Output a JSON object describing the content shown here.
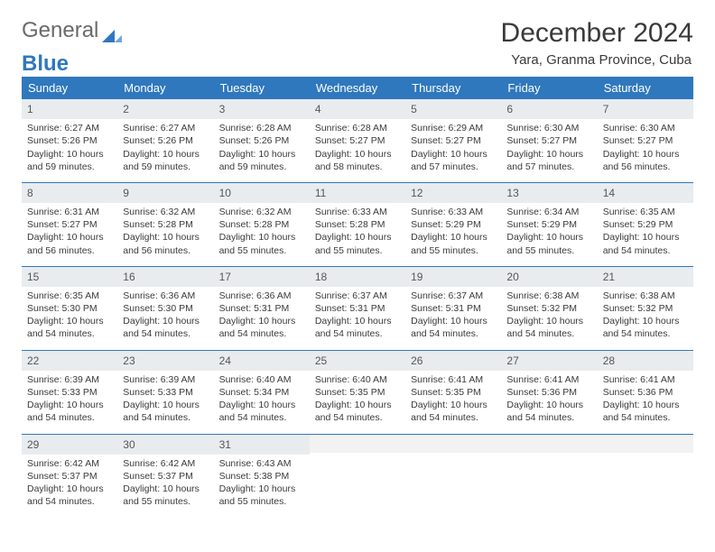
{
  "logo": {
    "text1": "General",
    "text2": "Blue"
  },
  "title": "December 2024",
  "subtitle": "Yara, Granma Province, Cuba",
  "colors": {
    "header_bg": "#2f78bd",
    "header_fg": "#ffffff",
    "daynum_bg": "#e9ecef",
    "border": "#2f78bd"
  },
  "weekday_labels": [
    "Sunday",
    "Monday",
    "Tuesday",
    "Wednesday",
    "Thursday",
    "Friday",
    "Saturday"
  ],
  "days": [
    {
      "n": "1",
      "sr": "6:27 AM",
      "ss": "5:26 PM",
      "dl": "10 hours and 59 minutes."
    },
    {
      "n": "2",
      "sr": "6:27 AM",
      "ss": "5:26 PM",
      "dl": "10 hours and 59 minutes."
    },
    {
      "n": "3",
      "sr": "6:28 AM",
      "ss": "5:26 PM",
      "dl": "10 hours and 59 minutes."
    },
    {
      "n": "4",
      "sr": "6:28 AM",
      "ss": "5:27 PM",
      "dl": "10 hours and 58 minutes."
    },
    {
      "n": "5",
      "sr": "6:29 AM",
      "ss": "5:27 PM",
      "dl": "10 hours and 57 minutes."
    },
    {
      "n": "6",
      "sr": "6:30 AM",
      "ss": "5:27 PM",
      "dl": "10 hours and 57 minutes."
    },
    {
      "n": "7",
      "sr": "6:30 AM",
      "ss": "5:27 PM",
      "dl": "10 hours and 56 minutes."
    },
    {
      "n": "8",
      "sr": "6:31 AM",
      "ss": "5:27 PM",
      "dl": "10 hours and 56 minutes."
    },
    {
      "n": "9",
      "sr": "6:32 AM",
      "ss": "5:28 PM",
      "dl": "10 hours and 56 minutes."
    },
    {
      "n": "10",
      "sr": "6:32 AM",
      "ss": "5:28 PM",
      "dl": "10 hours and 55 minutes."
    },
    {
      "n": "11",
      "sr": "6:33 AM",
      "ss": "5:28 PM",
      "dl": "10 hours and 55 minutes."
    },
    {
      "n": "12",
      "sr": "6:33 AM",
      "ss": "5:29 PM",
      "dl": "10 hours and 55 minutes."
    },
    {
      "n": "13",
      "sr": "6:34 AM",
      "ss": "5:29 PM",
      "dl": "10 hours and 55 minutes."
    },
    {
      "n": "14",
      "sr": "6:35 AM",
      "ss": "5:29 PM",
      "dl": "10 hours and 54 minutes."
    },
    {
      "n": "15",
      "sr": "6:35 AM",
      "ss": "5:30 PM",
      "dl": "10 hours and 54 minutes."
    },
    {
      "n": "16",
      "sr": "6:36 AM",
      "ss": "5:30 PM",
      "dl": "10 hours and 54 minutes."
    },
    {
      "n": "17",
      "sr": "6:36 AM",
      "ss": "5:31 PM",
      "dl": "10 hours and 54 minutes."
    },
    {
      "n": "18",
      "sr": "6:37 AM",
      "ss": "5:31 PM",
      "dl": "10 hours and 54 minutes."
    },
    {
      "n": "19",
      "sr": "6:37 AM",
      "ss": "5:31 PM",
      "dl": "10 hours and 54 minutes."
    },
    {
      "n": "20",
      "sr": "6:38 AM",
      "ss": "5:32 PM",
      "dl": "10 hours and 54 minutes."
    },
    {
      "n": "21",
      "sr": "6:38 AM",
      "ss": "5:32 PM",
      "dl": "10 hours and 54 minutes."
    },
    {
      "n": "22",
      "sr": "6:39 AM",
      "ss": "5:33 PM",
      "dl": "10 hours and 54 minutes."
    },
    {
      "n": "23",
      "sr": "6:39 AM",
      "ss": "5:33 PM",
      "dl": "10 hours and 54 minutes."
    },
    {
      "n": "24",
      "sr": "6:40 AM",
      "ss": "5:34 PM",
      "dl": "10 hours and 54 minutes."
    },
    {
      "n": "25",
      "sr": "6:40 AM",
      "ss": "5:35 PM",
      "dl": "10 hours and 54 minutes."
    },
    {
      "n": "26",
      "sr": "6:41 AM",
      "ss": "5:35 PM",
      "dl": "10 hours and 54 minutes."
    },
    {
      "n": "27",
      "sr": "6:41 AM",
      "ss": "5:36 PM",
      "dl": "10 hours and 54 minutes."
    },
    {
      "n": "28",
      "sr": "6:41 AM",
      "ss": "5:36 PM",
      "dl": "10 hours and 54 minutes."
    },
    {
      "n": "29",
      "sr": "6:42 AM",
      "ss": "5:37 PM",
      "dl": "10 hours and 54 minutes."
    },
    {
      "n": "30",
      "sr": "6:42 AM",
      "ss": "5:37 PM",
      "dl": "10 hours and 55 minutes."
    },
    {
      "n": "31",
      "sr": "6:43 AM",
      "ss": "5:38 PM",
      "dl": "10 hours and 55 minutes."
    }
  ],
  "labels": {
    "sunrise": "Sunrise: ",
    "sunset": "Sunset: ",
    "daylight": "Daylight: "
  },
  "layout": {
    "first_weekday": 0,
    "trailing_empty": 4
  }
}
